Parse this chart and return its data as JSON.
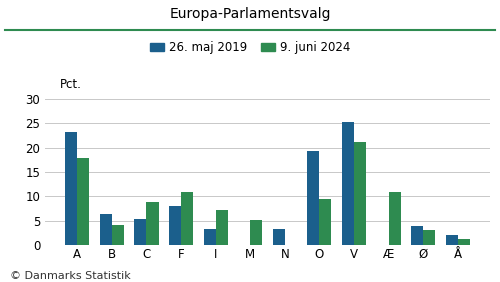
{
  "title": "Europa-Parlamentsvalg",
  "categories": [
    "A",
    "B",
    "C",
    "F",
    "I",
    "M",
    "N",
    "O",
    "V",
    "Æ",
    "Ø",
    "Å"
  ],
  "values_2019": [
    23.1,
    6.5,
    5.4,
    8.1,
    3.3,
    0,
    3.4,
    19.4,
    25.3,
    0,
    3.9,
    2.2
  ],
  "values_2024": [
    17.8,
    4.1,
    8.9,
    11.0,
    7.2,
    5.2,
    0,
    9.5,
    21.2,
    10.9,
    3.2,
    1.3
  ],
  "color_2019": "#1b5f8c",
  "color_2024": "#2e8b50",
  "ylabel": "Pct.",
  "ylim": [
    0,
    30
  ],
  "yticks": [
    0,
    5,
    10,
    15,
    20,
    25,
    30
  ],
  "legend_2019": "26. maj 2019",
  "legend_2024": "9. juni 2024",
  "footer": "© Danmarks Statistik",
  "title_color": "#000000",
  "bg_color": "#ffffff",
  "grid_color": "#c8c8c8",
  "title_line_color": "#2e8b50",
  "bar_width": 0.35
}
